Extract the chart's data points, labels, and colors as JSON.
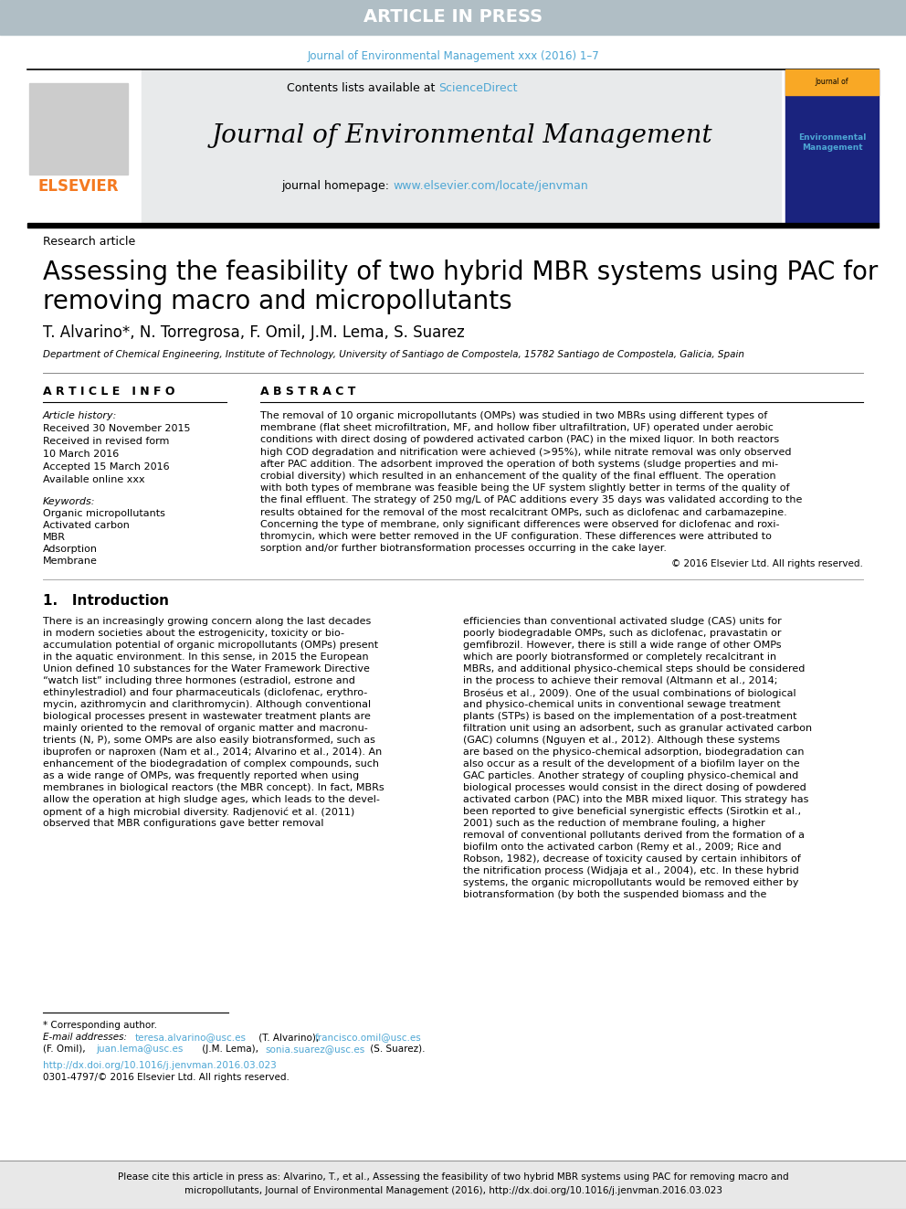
{
  "article_in_press_bg": "#b0bec5",
  "article_in_press_text": "ARTICLE IN PRESS",
  "journal_cite_text": "Journal of Environmental Management xxx (2016) 1–7",
  "journal_cite_color": "#4da6d4",
  "contents_text": "Contents lists available at ",
  "sciencedirect_text": "ScienceDirect",
  "sciencedirect_color": "#4da6d4",
  "journal_title": "Journal of Environmental Management",
  "journal_homepage_text": "journal homepage: ",
  "journal_url": "www.elsevier.com/locate/jenvman",
  "journal_url_color": "#4da6d4",
  "elsevier_color": "#f47920",
  "header_bg": "#e8eaeb",
  "research_article_label": "Research article",
  "paper_title_line1": "Assessing the feasibility of two hybrid MBR systems using PAC for",
  "paper_title_line2": "removing macro and micropollutants",
  "authors": "T. Alvarino*, N. Torregrosa, F. Omil, J.M. Lema, S. Suarez",
  "affiliation": "Department of Chemical Engineering, Institute of Technology, University of Santiago de Compostela, 15782 Santiago de Compostela, Galicia, Spain",
  "article_info_header": "A R T I C L E   I N F O",
  "abstract_header": "A B S T R A C T",
  "article_history_label": "Article history:",
  "received_text": "Received 30 November 2015",
  "revised_text": "Received in revised form",
  "revised_date": "10 March 2016",
  "accepted_text": "Accepted 15 March 2016",
  "available_text": "Available online xxx",
  "keywords_label": "Keywords:",
  "keyword1": "Organic micropollutants",
  "keyword2": "Activated carbon",
  "keyword3": "MBR",
  "keyword4": "Adsorption",
  "keyword5": "Membrane",
  "copyright_text": "© 2016 Elsevier Ltd. All rights reserved.",
  "intro_header": "1.   Introduction",
  "footnote_star": "* Corresponding author.",
  "footnote_email_label": "E-mail addresses:",
  "footnote_email1": "teresa.alvarino@usc.es",
  "footnote_email1_color": "#4da6d4",
  "footnote_author1": " (T. Alvarino), ",
  "footnote_email2": "francisco.omil@usc.es",
  "footnote_email2_color": "#4da6d4",
  "footnote_author2": "(F. Omil), ",
  "footnote_email3": "juan.lema@usc.es",
  "footnote_email3_color": "#4da6d4",
  "footnote_author3": " (J.M. Lema), ",
  "footnote_email4": "sonia.suarez@usc.es",
  "footnote_email4_color": "#4da6d4",
  "footnote_author4": " (S. Suarez).",
  "doi_text": "http://dx.doi.org/10.1016/j.jenvman.2016.03.023",
  "doi_color": "#4da6d4",
  "issn_text": "0301-4797/© 2016 Elsevier Ltd. All rights reserved.",
  "cite_bar_bg": "#e8e8e8",
  "cite_bar_line1": "Please cite this article in press as: Alvarino, T., et al., Assessing the feasibility of two hybrid MBR systems using PAC for removing macro and",
  "cite_bar_line2": "micropollutants, Journal of Environmental Management (2016), http://dx.doi.org/10.1016/j.jenvman.2016.03.023",
  "page_bg": "#ffffff",
  "abstract_lines": [
    "The removal of 10 organic micropollutants (OMPs) was studied in two MBRs using different types of",
    "membrane (flat sheet microfiltration, MF, and hollow fiber ultrafiltration, UF) operated under aerobic",
    "conditions with direct dosing of powdered activated carbon (PAC) in the mixed liquor. In both reactors",
    "high COD degradation and nitrification were achieved (>95%), while nitrate removal was only observed",
    "after PAC addition. The adsorbent improved the operation of both systems (sludge properties and mi-",
    "crobial diversity) which resulted in an enhancement of the quality of the final effluent. The operation",
    "with both types of membrane was feasible being the UF system slightly better in terms of the quality of",
    "the final effluent. The strategy of 250 mg/L of PAC additions every 35 days was validated according to the",
    "results obtained for the removal of the most recalcitrant OMPs, such as diclofenac and carbamazepine.",
    "Concerning the type of membrane, only significant differences were observed for diclofenac and roxi-",
    "thromycin, which were better removed in the UF configuration. These differences were attributed to",
    "sorption and/or further biotransformation processes occurring in the cake layer."
  ],
  "intro_col1_lines": [
    "There is an increasingly growing concern along the last decades",
    "in modern societies about the estrogenicity, toxicity or bio-",
    "accumulation potential of organic micropollutants (OMPs) present",
    "in the aquatic environment. In this sense, in 2015 the European",
    "Union defined 10 substances for the Water Framework Directive",
    "“watch list” including three hormones (estradiol, estrone and",
    "ethinylestradiol) and four pharmaceuticals (diclofenac, erythro-",
    "mycin, azithromycin and clarithromycin). Although conventional",
    "biological processes present in wastewater treatment plants are",
    "mainly oriented to the removal of organic matter and macronu-",
    "trients (N, P), some OMPs are also easily biotransformed, such as",
    "ibuprofen or naproxen (Nam et al., 2014; Alvarino et al., 2014). An",
    "enhancement of the biodegradation of complex compounds, such",
    "as a wide range of OMPs, was frequently reported when using",
    "membranes in biological reactors (the MBR concept). In fact, MBRs",
    "allow the operation at high sludge ages, which leads to the devel-",
    "opment of a high microbial diversity. Radjenović et al. (2011)",
    "observed that MBR configurations gave better removal"
  ],
  "intro_col2_lines": [
    "efficiencies than conventional activated sludge (CAS) units for",
    "poorly biodegradable OMPs, such as diclofenac, pravastatin or",
    "gemfibrozil. However, there is still a wide range of other OMPs",
    "which are poorly biotransformed or completely recalcitrant in",
    "MBRs, and additional physico-chemical steps should be considered",
    "in the process to achieve their removal (Altmann et al., 2014;",
    "Broséus et al., 2009). One of the usual combinations of biological",
    "and physico-chemical units in conventional sewage treatment",
    "plants (STPs) is based on the implementation of a post-treatment",
    "filtration unit using an adsorbent, such as granular activated carbon",
    "(GAC) columns (Nguyen et al., 2012). Although these systems",
    "are based on the physico-chemical adsorption, biodegradation can",
    "also occur as a result of the development of a biofilm layer on the",
    "GAC particles. Another strategy of coupling physico-chemical and",
    "biological processes would consist in the direct dosing of powdered",
    "activated carbon (PAC) into the MBR mixed liquor. This strategy has",
    "been reported to give beneficial synergistic effects (Sirotkin et al.,",
    "2001) such as the reduction of membrane fouling, a higher",
    "removal of conventional pollutants derived from the formation of a",
    "biofilm onto the activated carbon (Remy et al., 2009; Rice and",
    "Robson, 1982), decrease of toxicity caused by certain inhibitors of",
    "the nitrification process (Widjaja et al., 2004), etc. In these hybrid",
    "systems, the organic micropollutants would be removed either by",
    "biotransformation (by both the suspended biomass and the"
  ]
}
